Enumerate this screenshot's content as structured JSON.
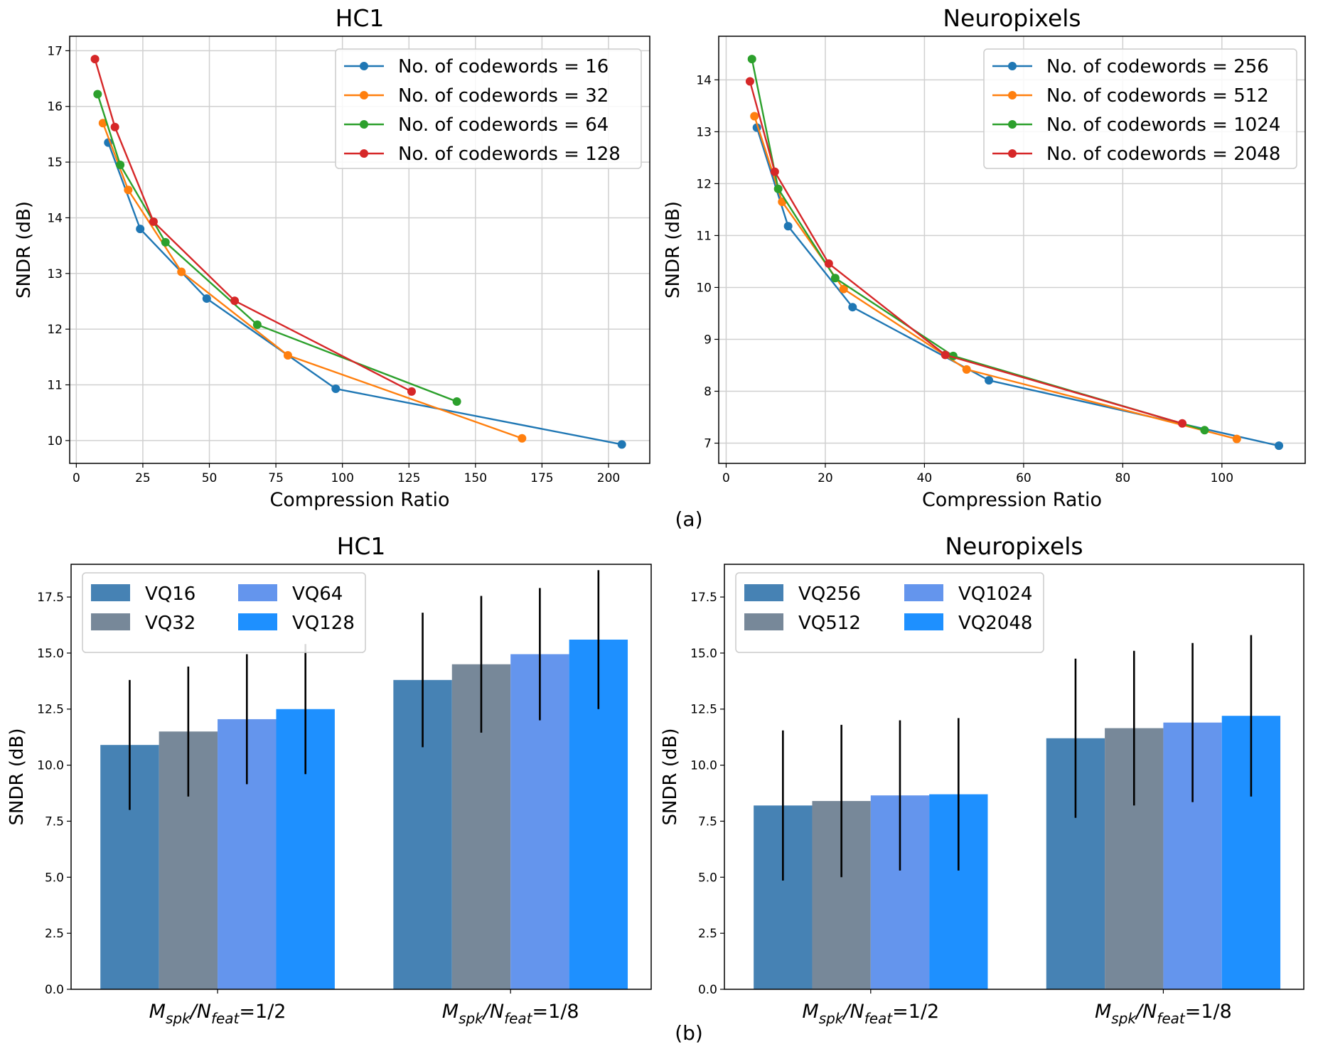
{
  "panel_labels": {
    "a": "(a)",
    "b": "(b)"
  },
  "colors": {
    "line": [
      "#1f77b4",
      "#ff7f0e",
      "#2ca02c",
      "#d62728"
    ],
    "bar": [
      "#4682b4",
      "#778899",
      "#6495ed",
      "#1e90ff"
    ],
    "grid": "#d0d0d0",
    "error_bar": "#000000"
  },
  "chart_data": [
    {
      "type": "line",
      "title": "HC1",
      "xlabel": "Compression Ratio",
      "ylabel": "SNDR (dB)",
      "xlim": [
        -2.5,
        215.5
      ],
      "ylim": [
        9.59,
        17.26
      ],
      "xticks": [
        0,
        25,
        50,
        75,
        100,
        125,
        150,
        175,
        200
      ],
      "yticks": [
        10,
        11,
        12,
        13,
        14,
        15,
        16,
        17
      ],
      "grid": true,
      "legend": "top-right",
      "series": [
        {
          "name": "No. of codewords = 16",
          "x": [
            12,
            24,
            49,
            97.5,
            205
          ],
          "y": [
            15.35,
            13.8,
            12.55,
            10.93,
            9.93
          ]
        },
        {
          "name": "No. of codewords = 32",
          "x": [
            10,
            19.5,
            39.5,
            79.5,
            167.5
          ],
          "y": [
            15.7,
            14.5,
            13.03,
            11.53,
            10.04
          ]
        },
        {
          "name": "No. of codewords = 64",
          "x": [
            8,
            16.5,
            33.5,
            68,
            143
          ],
          "y": [
            16.22,
            14.95,
            13.56,
            12.08,
            10.7
          ]
        },
        {
          "name": "No. of codewords = 128",
          "x": [
            7,
            14.5,
            29,
            59.5,
            126
          ],
          "y": [
            16.85,
            15.63,
            13.93,
            12.51,
            10.88
          ]
        }
      ]
    },
    {
      "type": "line",
      "title": "Neuropixels",
      "xlabel": "Compression Ratio",
      "ylabel": "SNDR (dB)",
      "xlim": [
        -1.5,
        116.8
      ],
      "ylim": [
        6.61,
        14.84
      ],
      "xticks": [
        0,
        20,
        40,
        60,
        80,
        100
      ],
      "yticks": [
        7,
        8,
        9,
        10,
        11,
        12,
        13,
        14
      ],
      "grid": true,
      "legend": "top-right",
      "series": [
        {
          "name": "No. of codewords = 256",
          "x": [
            6.2,
            12.5,
            25.5,
            53,
            111.5
          ],
          "y": [
            13.08,
            11.18,
            9.62,
            8.21,
            6.95
          ]
        },
        {
          "name": "No. of codewords = 512",
          "x": [
            5.7,
            11.3,
            23.7,
            48.5,
            103
          ],
          "y": [
            13.3,
            11.65,
            9.97,
            8.42,
            7.08
          ]
        },
        {
          "name": "No. of codewords = 1024",
          "x": [
            5.2,
            10.5,
            22,
            45.8,
            96.5
          ],
          "y": [
            14.4,
            11.9,
            10.18,
            8.68,
            7.25
          ]
        },
        {
          "name": "No. of codewords = 2048",
          "x": [
            4.8,
            9.8,
            20.7,
            44.2,
            92
          ],
          "y": [
            13.97,
            12.23,
            10.46,
            8.7,
            7.38
          ]
        }
      ]
    },
    {
      "type": "bar",
      "title": "HC1",
      "xlabel": "",
      "ylabel": "SNDR (dB)",
      "ylim": [
        0,
        18.96
      ],
      "yticks": [
        "0.0",
        "2.5",
        "5.0",
        "7.5",
        "10.0",
        "12.5",
        "15.0",
        "17.5"
      ],
      "categories": [
        "M_spk/N_feat=1/2",
        "M_spk/N_feat=1/8"
      ],
      "legend": "top-left",
      "series": [
        {
          "name": "VQ16",
          "values": [
            10.9,
            13.8
          ],
          "error": [
            2.9,
            3.0
          ]
        },
        {
          "name": "VQ32",
          "values": [
            11.5,
            14.5
          ],
          "error": [
            2.9,
            3.05
          ]
        },
        {
          "name": "VQ64",
          "values": [
            12.05,
            14.95
          ],
          "error": [
            2.9,
            2.95
          ]
        },
        {
          "name": "VQ128",
          "values": [
            12.5,
            15.6
          ],
          "error": [
            2.9,
            3.1
          ]
        }
      ]
    },
    {
      "type": "bar",
      "title": "Neuropixels",
      "xlabel": "",
      "ylabel": "SNDR (dB)",
      "ylim": [
        0,
        18.96
      ],
      "yticks": [
        "0.0",
        "2.5",
        "5.0",
        "7.5",
        "10.0",
        "12.5",
        "15.0",
        "17.5"
      ],
      "categories": [
        "M_spk/N_feat=1/2",
        "M_spk/N_feat=1/8"
      ],
      "legend": "top-left",
      "series": [
        {
          "name": "VQ256",
          "values": [
            8.2,
            11.2
          ],
          "error": [
            3.35,
            3.55
          ]
        },
        {
          "name": "VQ512",
          "values": [
            8.4,
            11.65
          ],
          "error": [
            3.4,
            3.45
          ]
        },
        {
          "name": "VQ1024",
          "values": [
            8.65,
            11.9
          ],
          "error": [
            3.35,
            3.55
          ]
        },
        {
          "name": "VQ2048",
          "values": [
            8.7,
            12.2
          ],
          "error": [
            3.4,
            3.6
          ]
        }
      ]
    }
  ]
}
